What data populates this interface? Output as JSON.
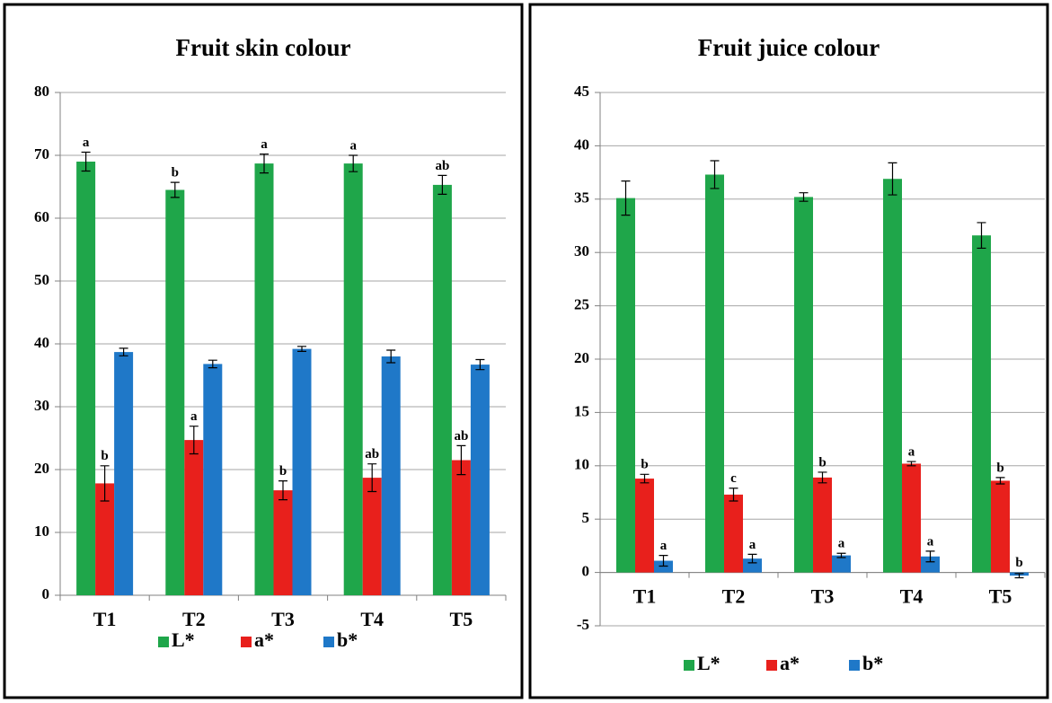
{
  "chart_data": [
    {
      "type": "bar",
      "title": "Fruit skin colour",
      "categories": [
        "T1",
        "T2",
        "T3",
        "T4",
        "T5"
      ],
      "series": [
        {
          "name": "L*",
          "color": "#1fa64a",
          "values": [
            69,
            64.5,
            68.7,
            68.7,
            65.3
          ],
          "errors": [
            1.5,
            1.2,
            1.5,
            1.3,
            1.5
          ],
          "labels": [
            "a",
            "b",
            "a",
            "a",
            "ab"
          ]
        },
        {
          "name": "a*",
          "color": "#e8201c",
          "values": [
            17.8,
            24.7,
            16.7,
            18.7,
            21.5
          ],
          "errors": [
            2.8,
            2.2,
            1.5,
            2.2,
            2.3
          ],
          "labels": [
            "b",
            "a",
            "b",
            "ab",
            "ab"
          ]
        },
        {
          "name": "b*",
          "color": "#1f78c8",
          "values": [
            38.7,
            36.8,
            39.2,
            38.0,
            36.7
          ],
          "errors": [
            0.6,
            0.6,
            0.4,
            1.0,
            0.8
          ]
        }
      ],
      "ylim": [
        0,
        80
      ],
      "yticks": [
        0,
        10,
        20,
        30,
        40,
        50,
        60,
        70,
        80
      ],
      "grid": true,
      "legend": "bottom"
    },
    {
      "type": "bar",
      "title": "Fruit juice colour",
      "categories": [
        "T1",
        "T2",
        "T3",
        "T4",
        "T5"
      ],
      "series": [
        {
          "name": "L*",
          "color": "#1fa64a",
          "values": [
            35.1,
            37.3,
            35.2,
            36.9,
            31.6
          ],
          "errors": [
            1.6,
            1.3,
            0.4,
            1.5,
            1.2
          ]
        },
        {
          "name": "a*",
          "color": "#e8201c",
          "values": [
            8.8,
            7.3,
            8.9,
            10.2,
            8.6
          ],
          "errors": [
            0.4,
            0.6,
            0.5,
            0.2,
            0.3
          ],
          "labels": [
            "b",
            "c",
            "b",
            "a",
            "b"
          ]
        },
        {
          "name": "b*",
          "color": "#1f78c8",
          "values": [
            1.1,
            1.3,
            1.6,
            1.5,
            -0.3
          ],
          "errors": [
            0.5,
            0.4,
            0.2,
            0.5,
            0.2
          ],
          "labels": [
            "a",
            "a",
            "a",
            "a",
            "b"
          ]
        }
      ],
      "ylim": [
        -5,
        45
      ],
      "yticks": [
        -5,
        0,
        5,
        10,
        15,
        20,
        25,
        30,
        35,
        40,
        45
      ],
      "grid": true,
      "legend": "bottom"
    }
  ]
}
